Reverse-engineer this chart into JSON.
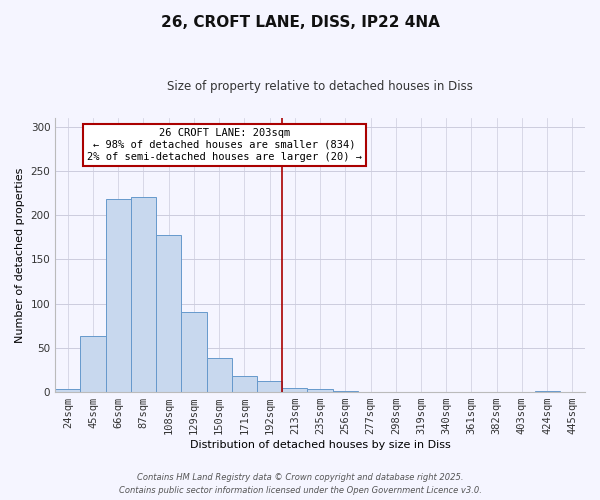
{
  "title": "26, CROFT LANE, DISS, IP22 4NA",
  "subtitle": "Size of property relative to detached houses in Diss",
  "xlabel": "Distribution of detached houses by size in Diss",
  "ylabel": "Number of detached properties",
  "categories": [
    "24sqm",
    "45sqm",
    "66sqm",
    "87sqm",
    "108sqm",
    "129sqm",
    "150sqm",
    "171sqm",
    "192sqm",
    "213sqm",
    "235sqm",
    "256sqm",
    "277sqm",
    "298sqm",
    "319sqm",
    "340sqm",
    "361sqm",
    "382sqm",
    "403sqm",
    "424sqm",
    "445sqm"
  ],
  "bar_values": [
    4,
    63,
    218,
    220,
    178,
    91,
    39,
    18,
    13,
    5,
    3,
    1,
    0,
    0,
    0,
    0,
    0,
    0,
    0,
    1,
    0
  ],
  "bar_color": "#c8d8ee",
  "bar_edge_color": "#6699cc",
  "vline_x_index": 9,
  "vline_color": "#aa0000",
  "ylim": [
    0,
    310
  ],
  "yticks": [
    0,
    50,
    100,
    150,
    200,
    250,
    300
  ],
  "annotation_title": "26 CROFT LANE: 203sqm",
  "annotation_line1": "← 98% of detached houses are smaller (834)",
  "annotation_line2": "2% of semi-detached houses are larger (20) →",
  "annotation_box_facecolor": "#ffffff",
  "annotation_box_edgecolor": "#aa0000",
  "footer_line1": "Contains HM Land Registry data © Crown copyright and database right 2025.",
  "footer_line2": "Contains public sector information licensed under the Open Government Licence v3.0.",
  "bg_color": "#f5f5ff",
  "grid_color": "#ccccdd",
  "title_fontsize": 11,
  "subtitle_fontsize": 8.5,
  "ylabel_fontsize": 8,
  "xlabel_fontsize": 8,
  "tick_fontsize": 7.5,
  "annotation_fontsize": 7.5,
  "footer_fontsize": 6
}
